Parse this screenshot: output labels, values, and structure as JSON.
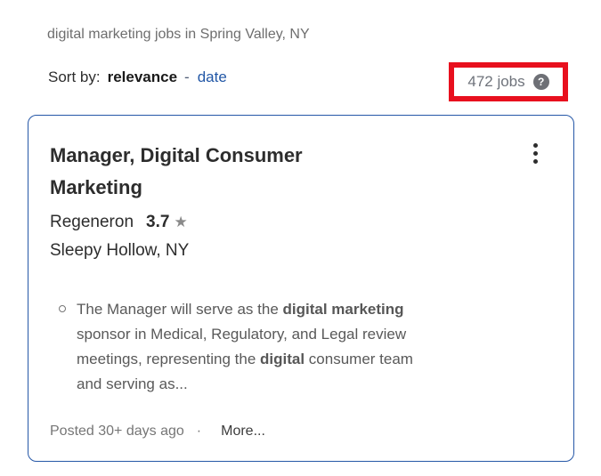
{
  "header": {
    "query_line": "digital marketing jobs in Spring Valley, NY",
    "sort_by_label": "Sort by:",
    "sort_active": "relevance",
    "sort_separator": "-",
    "sort_date": "date",
    "jobs_count": "472 jobs",
    "help_icon_glyph": "?"
  },
  "job_card": {
    "title": "Manager, Digital Consumer Marketing",
    "company_name": "Regeneron",
    "rating_value": "3.7",
    "rating_star_glyph": "★",
    "location": "Sleepy Hollow, NY",
    "description_segments": [
      {
        "text": "The Manager will serve as the ",
        "bold": false
      },
      {
        "text": "digital marketing",
        "bold": true
      },
      {
        "text": " sponsor in Medical, Regulatory, and Legal review meetings, representing the ",
        "bold": false
      },
      {
        "text": "digital",
        "bold": true
      },
      {
        "text": " consumer team and serving as...",
        "bold": false
      }
    ],
    "posted": "Posted 30+ days ago",
    "footer_separator": "·",
    "more_label": "More..."
  },
  "colors": {
    "card_border_blue": "#2557a7",
    "link_blue": "#2257a6",
    "annotation_red": "#e8101e",
    "title_text": "#2d2d2d",
    "body_gray": "#595959",
    "muted_gray": "#767676",
    "count_text": "#6f737b"
  }
}
